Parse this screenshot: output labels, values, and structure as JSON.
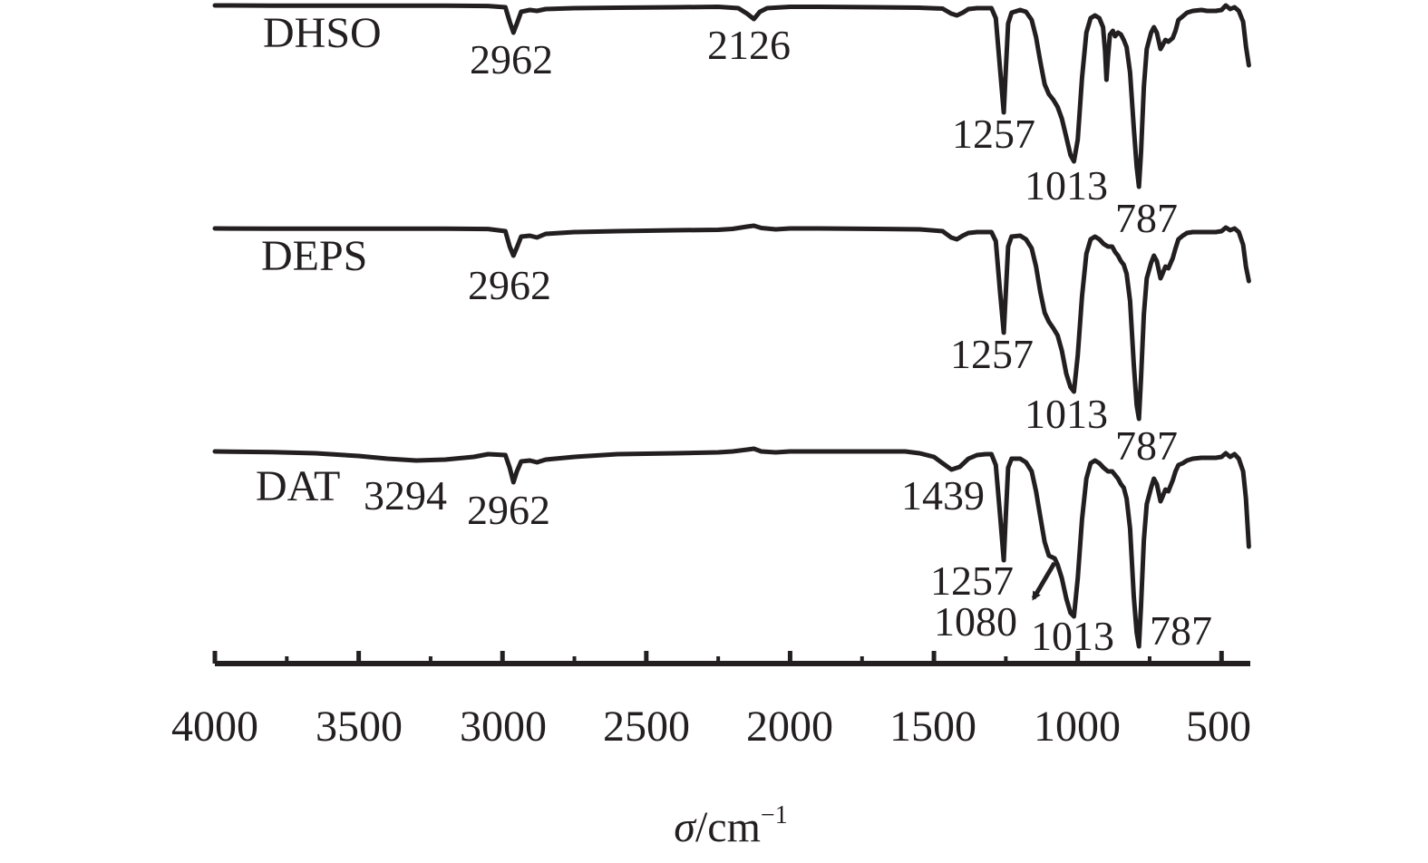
{
  "chart_data": {
    "type": "line",
    "xlabel": {
      "symbol": "σ",
      "unit": "/cm",
      "exponent": "−1"
    },
    "xlim": [
      4000,
      400
    ],
    "x_ticks": [
      4000,
      3500,
      3000,
      2500,
      2000,
      1500,
      1000,
      500
    ],
    "x_tick_labels": [
      "4000",
      "3500",
      "3000",
      "2500",
      "2000",
      "1500",
      "1000",
      "500"
    ],
    "line_color": "#231f20",
    "series": [
      {
        "name": "DHSO",
        "points": [
          [
            4000,
            0
          ],
          [
            3800,
            0.2
          ],
          [
            3600,
            0.2
          ],
          [
            3400,
            0.3
          ],
          [
            3200,
            0.3
          ],
          [
            3050,
            0.6
          ],
          [
            2990,
            2
          ],
          [
            2975,
            18
          ],
          [
            2962,
            30
          ],
          [
            2950,
            20
          ],
          [
            2935,
            7
          ],
          [
            2905,
            5
          ],
          [
            2880,
            6
          ],
          [
            2850,
            4
          ],
          [
            2750,
            3
          ],
          [
            2600,
            2.5
          ],
          [
            2400,
            2
          ],
          [
            2250,
            1.5
          ],
          [
            2180,
            3
          ],
          [
            2150,
            9
          ],
          [
            2126,
            15
          ],
          [
            2105,
            7
          ],
          [
            2080,
            3
          ],
          [
            2000,
            1.5
          ],
          [
            1900,
            1.5
          ],
          [
            1700,
            2
          ],
          [
            1550,
            2.5
          ],
          [
            1470,
            3.5
          ],
          [
            1440,
            9
          ],
          [
            1420,
            11
          ],
          [
            1400,
            8
          ],
          [
            1380,
            4
          ],
          [
            1350,
            3
          ],
          [
            1300,
            3
          ],
          [
            1285,
            14
          ],
          [
            1270,
            70
          ],
          [
            1257,
            118
          ],
          [
            1250,
            70
          ],
          [
            1242,
            20
          ],
          [
            1230,
            8
          ],
          [
            1200,
            5
          ],
          [
            1180,
            7
          ],
          [
            1160,
            16
          ],
          [
            1145,
            35
          ],
          [
            1130,
            62
          ],
          [
            1115,
            87
          ],
          [
            1100,
            98
          ],
          [
            1085,
            104
          ],
          [
            1070,
            112
          ],
          [
            1055,
            125
          ],
          [
            1040,
            145
          ],
          [
            1025,
            165
          ],
          [
            1013,
            172
          ],
          [
            1000,
            148
          ],
          [
            985,
            80
          ],
          [
            970,
            30
          ],
          [
            955,
            14
          ],
          [
            940,
            11
          ],
          [
            925,
            14
          ],
          [
            912,
            24
          ],
          [
            905,
            50
          ],
          [
            900,
            82
          ],
          [
            895,
            58
          ],
          [
            888,
            32
          ],
          [
            878,
            28
          ],
          [
            870,
            34
          ],
          [
            860,
            30
          ],
          [
            850,
            32
          ],
          [
            840,
            38
          ],
          [
            830,
            46
          ],
          [
            818,
            74
          ],
          [
            805,
            135
          ],
          [
            795,
            178
          ],
          [
            787,
            200
          ],
          [
            780,
            162
          ],
          [
            770,
            90
          ],
          [
            760,
            48
          ],
          [
            745,
            30
          ],
          [
            735,
            24
          ],
          [
            725,
            30
          ],
          [
            712,
            48
          ],
          [
            705,
            44
          ],
          [
            695,
            38
          ],
          [
            685,
            40
          ],
          [
            670,
            36
          ],
          [
            660,
            28
          ],
          [
            650,
            16
          ],
          [
            635,
            12
          ],
          [
            620,
            8
          ],
          [
            600,
            6
          ],
          [
            570,
            5
          ],
          [
            550,
            6
          ],
          [
            520,
            6
          ],
          [
            500,
            5
          ],
          [
            485,
            0
          ],
          [
            470,
            4
          ],
          [
            455,
            2
          ],
          [
            440,
            6
          ],
          [
            425,
            18
          ],
          [
            415,
            45
          ],
          [
            405,
            66
          ]
        ]
      },
      {
        "name": "DEPS",
        "points": [
          [
            4000,
            0
          ],
          [
            3800,
            0.3
          ],
          [
            3600,
            0.3
          ],
          [
            3400,
            0.3
          ],
          [
            3200,
            0.3
          ],
          [
            3050,
            0.6
          ],
          [
            2990,
            3
          ],
          [
            2975,
            20
          ],
          [
            2962,
            30
          ],
          [
            2950,
            21
          ],
          [
            2935,
            9
          ],
          [
            2905,
            8
          ],
          [
            2880,
            10
          ],
          [
            2850,
            6
          ],
          [
            2750,
            4
          ],
          [
            2600,
            3
          ],
          [
            2400,
            2
          ],
          [
            2250,
            1.5
          ],
          [
            2200,
            0.5
          ],
          [
            2150,
            -2
          ],
          [
            2126,
            -3
          ],
          [
            2100,
            -0.5
          ],
          [
            2050,
            1
          ],
          [
            2000,
            0
          ],
          [
            1900,
            0
          ],
          [
            1700,
            0.5
          ],
          [
            1550,
            1
          ],
          [
            1470,
            3
          ],
          [
            1440,
            10
          ],
          [
            1420,
            12
          ],
          [
            1400,
            8
          ],
          [
            1380,
            5
          ],
          [
            1350,
            4
          ],
          [
            1300,
            4
          ],
          [
            1285,
            14
          ],
          [
            1270,
            70
          ],
          [
            1257,
            115
          ],
          [
            1250,
            70
          ],
          [
            1242,
            20
          ],
          [
            1230,
            9
          ],
          [
            1200,
            8
          ],
          [
            1180,
            12
          ],
          [
            1160,
            22
          ],
          [
            1145,
            42
          ],
          [
            1130,
            70
          ],
          [
            1115,
            93
          ],
          [
            1100,
            103
          ],
          [
            1085,
            110
          ],
          [
            1070,
            118
          ],
          [
            1055,
            135
          ],
          [
            1040,
            160
          ],
          [
            1025,
            175
          ],
          [
            1013,
            180
          ],
          [
            1000,
            140
          ],
          [
            985,
            75
          ],
          [
            970,
            28
          ],
          [
            955,
            12
          ],
          [
            940,
            9
          ],
          [
            925,
            12
          ],
          [
            910,
            17
          ],
          [
            895,
            20
          ],
          [
            880,
            20
          ],
          [
            870,
            26
          ],
          [
            860,
            30
          ],
          [
            850,
            36
          ],
          [
            840,
            40
          ],
          [
            830,
            50
          ],
          [
            818,
            80
          ],
          [
            805,
            150
          ],
          [
            795,
            195
          ],
          [
            787,
            210
          ],
          [
            780,
            165
          ],
          [
            770,
            95
          ],
          [
            760,
            55
          ],
          [
            745,
            38
          ],
          [
            735,
            30
          ],
          [
            725,
            36
          ],
          [
            712,
            55
          ],
          [
            705,
            50
          ],
          [
            695,
            42
          ],
          [
            685,
            44
          ],
          [
            670,
            33
          ],
          [
            660,
            22
          ],
          [
            650,
            12
          ],
          [
            635,
            8
          ],
          [
            620,
            5
          ],
          [
            600,
            4
          ],
          [
            570,
            4
          ],
          [
            550,
            4
          ],
          [
            520,
            4
          ],
          [
            500,
            3
          ],
          [
            485,
            -1
          ],
          [
            470,
            2
          ],
          [
            455,
            0
          ],
          [
            440,
            4
          ],
          [
            425,
            18
          ],
          [
            415,
            42
          ],
          [
            405,
            58
          ]
        ]
      },
      {
        "name": "DAT",
        "points": [
          [
            4000,
            0
          ],
          [
            3800,
            0.8
          ],
          [
            3650,
            2
          ],
          [
            3500,
            5
          ],
          [
            3400,
            8
          ],
          [
            3300,
            10
          ],
          [
            3200,
            9
          ],
          [
            3100,
            6
          ],
          [
            3050,
            3
          ],
          [
            2990,
            4
          ],
          [
            2975,
            18
          ],
          [
            2962,
            34
          ],
          [
            2950,
            22
          ],
          [
            2935,
            11
          ],
          [
            2905,
            10
          ],
          [
            2880,
            12
          ],
          [
            2850,
            9
          ],
          [
            2750,
            6
          ],
          [
            2600,
            3
          ],
          [
            2400,
            2
          ],
          [
            2250,
            1
          ],
          [
            2200,
            0
          ],
          [
            2150,
            -2
          ],
          [
            2126,
            -3
          ],
          [
            2100,
            0
          ],
          [
            2050,
            1
          ],
          [
            2000,
            0
          ],
          [
            1900,
            0
          ],
          [
            1750,
            0
          ],
          [
            1600,
            0
          ],
          [
            1550,
            2
          ],
          [
            1500,
            6
          ],
          [
            1470,
            13
          ],
          [
            1439,
            20
          ],
          [
            1410,
            17
          ],
          [
            1380,
            8
          ],
          [
            1350,
            4
          ],
          [
            1320,
            3
          ],
          [
            1300,
            3
          ],
          [
            1285,
            15
          ],
          [
            1270,
            70
          ],
          [
            1257,
            120
          ],
          [
            1250,
            70
          ],
          [
            1242,
            18
          ],
          [
            1230,
            8
          ],
          [
            1200,
            8
          ],
          [
            1180,
            12
          ],
          [
            1160,
            22
          ],
          [
            1145,
            44
          ],
          [
            1130,
            72
          ],
          [
            1115,
            100
          ],
          [
            1100,
            115
          ],
          [
            1080,
            118
          ],
          [
            1070,
            125
          ],
          [
            1055,
            140
          ],
          [
            1040,
            162
          ],
          [
            1025,
            178
          ],
          [
            1013,
            182
          ],
          [
            1000,
            140
          ],
          [
            985,
            75
          ],
          [
            970,
            30
          ],
          [
            955,
            13
          ],
          [
            940,
            10
          ],
          [
            925,
            13
          ],
          [
            910,
            18
          ],
          [
            895,
            22
          ],
          [
            880,
            22
          ],
          [
            870,
            26
          ],
          [
            860,
            30
          ],
          [
            850,
            36
          ],
          [
            840,
            40
          ],
          [
            830,
            52
          ],
          [
            818,
            85
          ],
          [
            805,
            160
          ],
          [
            795,
            200
          ],
          [
            787,
            215
          ],
          [
            780,
            170
          ],
          [
            770,
            98
          ],
          [
            760,
            58
          ],
          [
            745,
            40
          ],
          [
            735,
            30
          ],
          [
            725,
            36
          ],
          [
            712,
            55
          ],
          [
            705,
            50
          ],
          [
            695,
            42
          ],
          [
            685,
            44
          ],
          [
            670,
            32
          ],
          [
            660,
            22
          ],
          [
            650,
            15
          ],
          [
            635,
            13
          ],
          [
            620,
            10
          ],
          [
            600,
            8
          ],
          [
            570,
            7
          ],
          [
            550,
            7
          ],
          [
            520,
            7
          ],
          [
            500,
            6
          ],
          [
            485,
            2
          ],
          [
            470,
            6
          ],
          [
            455,
            3
          ],
          [
            440,
            8
          ],
          [
            425,
            22
          ],
          [
            415,
            52
          ],
          [
            405,
            105
          ]
        ]
      }
    ],
    "peak_labels": [
      {
        "series": "DHSO",
        "text": "2962"
      },
      {
        "series": "DHSO",
        "text": "2126"
      },
      {
        "series": "DHSO",
        "text": "1257"
      },
      {
        "series": "DHSO",
        "text": "1013"
      },
      {
        "series": "DHSO",
        "text": "787"
      },
      {
        "series": "DEPS",
        "text": "2962"
      },
      {
        "series": "DEPS",
        "text": "1257"
      },
      {
        "series": "DEPS",
        "text": "1013"
      },
      {
        "series": "DEPS",
        "text": "787"
      },
      {
        "series": "DAT",
        "text": "3294"
      },
      {
        "series": "DAT",
        "text": "2962"
      },
      {
        "series": "DAT",
        "text": "1439"
      },
      {
        "series": "DAT",
        "text": "1257"
      },
      {
        "series": "DAT",
        "text": "1080"
      },
      {
        "series": "DAT",
        "text": "1013"
      },
      {
        "series": "DAT",
        "text": "787"
      }
    ]
  }
}
